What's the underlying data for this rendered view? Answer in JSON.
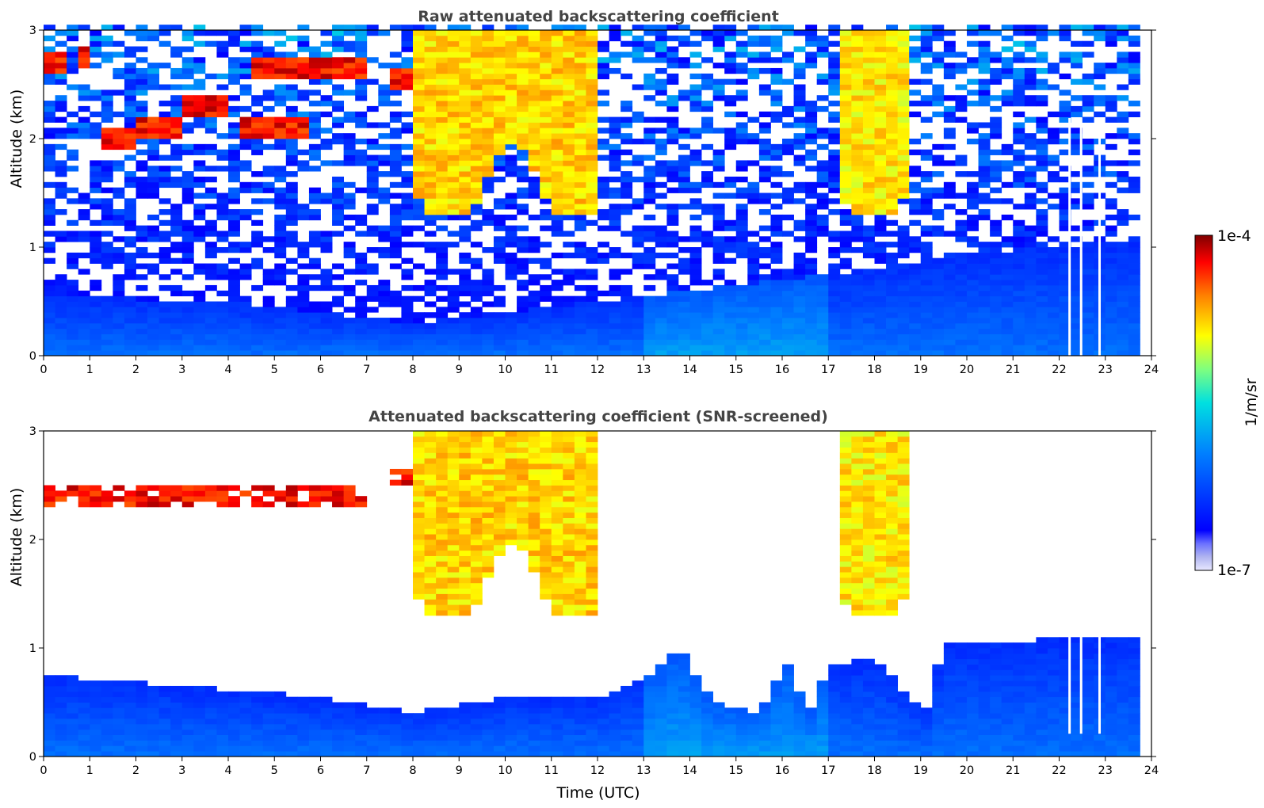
{
  "chart_data": {
    "type": "heatmap",
    "colormap": "jet",
    "panels": [
      {
        "id": "raw",
        "title": "Raw attenuated backscattering coefficient",
        "xlabel": "",
        "ylabel": "Altitude (km)",
        "xlim": [
          0,
          24
        ],
        "ylim": [
          0,
          3
        ],
        "xticks": [
          "0",
          "1",
          "2",
          "3",
          "4",
          "5",
          "6",
          "7",
          "8",
          "9",
          "10",
          "11",
          "12",
          "13",
          "14",
          "15",
          "16",
          "17",
          "18",
          "19",
          "20",
          "21",
          "22",
          "23",
          "24"
        ],
        "yticks": [
          "0",
          "1",
          "2",
          "3"
        ],
        "data_end_hour": 23.65,
        "base_layer": [
          {
            "t": 0,
            "top_km": 0.55
          },
          {
            "t": 4,
            "top_km": 0.5
          },
          {
            "t": 8,
            "top_km": 0.3
          },
          {
            "t": 14,
            "top_km": 0.6
          },
          {
            "t": 17,
            "top_km": 0.75
          },
          {
            "t": 20,
            "top_km": 0.95
          },
          {
            "t": 23.65,
            "top_km": 1.05
          }
        ],
        "features": [
          {
            "kind": "cloud",
            "t_start": 0.0,
            "t_end": 0.45,
            "alt_km": 2.7,
            "level": 0.97
          },
          {
            "kind": "cloud",
            "t_start": 0.7,
            "t_end": 1.1,
            "alt_km": 2.75,
            "level": 0.97
          },
          {
            "kind": "cloud",
            "t_start": 1.2,
            "t_end": 1.9,
            "alt_km": 2.0,
            "level": 0.97
          },
          {
            "kind": "cloud",
            "t_start": 2.1,
            "t_end": 3.0,
            "alt_km": 2.1,
            "level": 0.97
          },
          {
            "kind": "cloud",
            "t_start": 3.0,
            "t_end": 4.0,
            "alt_km": 2.3,
            "level": 0.97
          },
          {
            "kind": "cloud",
            "t_start": 4.3,
            "t_end": 5.7,
            "alt_km": 2.1,
            "level": 0.97
          },
          {
            "kind": "cloud",
            "t_start": 4.4,
            "t_end": 7.0,
            "alt_km": 2.65,
            "level": 0.97
          },
          {
            "kind": "cloud",
            "t_start": 7.6,
            "t_end": 8.2,
            "alt_km": 2.55,
            "level": 0.97
          },
          {
            "kind": "cloud",
            "t_start": 8.1,
            "t_end": 12.1,
            "alt_km": 2.3,
            "level": 0.8
          },
          {
            "kind": "cloud",
            "t_start": 17.3,
            "t_end": 18.7,
            "alt_km": 2.4,
            "level": 0.78
          }
        ],
        "gaps_hour": [
          22.2,
          22.45,
          22.85
        ]
      },
      {
        "id": "screened",
        "title": "Attenuated backscattering coefficient (SNR-screened)",
        "xlabel": "Time (UTC)",
        "ylabel": "Altitude (km)",
        "xlim": [
          0,
          24
        ],
        "ylim": [
          0,
          3
        ],
        "xticks": [
          "0",
          "1",
          "2",
          "3",
          "4",
          "5",
          "6",
          "7",
          "8",
          "9",
          "10",
          "11",
          "12",
          "13",
          "14",
          "15",
          "16",
          "17",
          "18",
          "19",
          "20",
          "21",
          "22",
          "23",
          "24"
        ],
        "yticks": [
          "0",
          "1",
          "2",
          "3"
        ],
        "data_end_hour": 23.65,
        "base_layer": [
          {
            "t": 0,
            "top_km": 0.75
          },
          {
            "t": 3,
            "top_km": 0.65
          },
          {
            "t": 6,
            "top_km": 0.55
          },
          {
            "t": 8,
            "top_km": 0.4
          },
          {
            "t": 10,
            "top_km": 0.55
          },
          {
            "t": 12,
            "top_km": 0.55
          },
          {
            "t": 13,
            "top_km": 0.7
          },
          {
            "t": 13.8,
            "top_km": 1.0
          },
          {
            "t": 14.5,
            "top_km": 0.5
          },
          {
            "t": 15.5,
            "top_km": 0.4
          },
          {
            "t": 16.1,
            "top_km": 0.85
          },
          {
            "t": 16.6,
            "top_km": 0.4
          },
          {
            "t": 17,
            "top_km": 0.85
          },
          {
            "t": 18,
            "top_km": 0.9
          },
          {
            "t": 19.1,
            "top_km": 0.4
          },
          {
            "t": 19.5,
            "top_km": 1.05
          },
          {
            "t": 23.65,
            "top_km": 1.1
          }
        ],
        "features": [
          {
            "kind": "cloud",
            "t_start": 0.0,
            "t_end": 7.0,
            "alt_km": 2.4,
            "level": 0.97
          },
          {
            "kind": "cloud",
            "t_start": 7.6,
            "t_end": 8.2,
            "alt_km": 2.55,
            "level": 0.97
          },
          {
            "kind": "cloud",
            "t_start": 8.1,
            "t_end": 12.1,
            "alt_km": 2.3,
            "level": 0.8
          },
          {
            "kind": "cloud",
            "t_start": 17.3,
            "t_end": 18.7,
            "alt_km": 2.4,
            "level": 0.78
          }
        ],
        "gaps_hour": [
          22.2,
          22.45,
          22.85
        ]
      }
    ],
    "colorbar": {
      "label": "1/m/sr",
      "min_label": "1e-7",
      "max_label": "1e-4",
      "scale": "log",
      "range": [
        1e-07,
        0.0001
      ]
    }
  }
}
